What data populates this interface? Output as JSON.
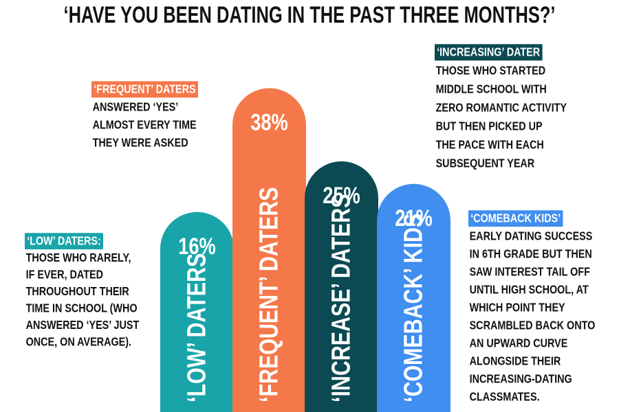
{
  "chart_data": {
    "type": "bar",
    "title": "‘HAVE YOU BEEN DATING IN THE PAST THREE MONTHS?’",
    "categories": [
      "‘LOW’ DATERS",
      "‘FREQUENT’ DATERS",
      "‘INCREASE’ DATERS",
      "‘COMEBACK’ KIDS"
    ],
    "values": [
      16,
      38,
      25,
      21
    ],
    "value_labels": [
      "16%",
      "38%",
      "25%",
      "21%"
    ],
    "colors": [
      "#19a4a9",
      "#f5784a",
      "#0b4a52",
      "#3f8ef0"
    ],
    "annotations": [
      {
        "title": "‘LOW’ DATERS:",
        "color": "#19a4a9",
        "lines": [
          "THOSE WHO RARELY,",
          "IF EVER, DATED",
          "THROUGHOUT THEIR",
          "TIME IN SCHOOL (WHO",
          "ANSWERED ‘YES’ JUST",
          "ONCE, ON AVERAGE)."
        ]
      },
      {
        "title": "‘FREQUENT’ DATERS",
        "color": "#f5784a",
        "lines": [
          "ANSWERED ‘YES’",
          "ALMOST EVERY TIME",
          "THEY WERE ASKED"
        ]
      },
      {
        "title": "‘INCREASING’ DATER",
        "color": "#0b4a52",
        "lines": [
          "THOSE WHO STARTED",
          "MIDDLE SCHOOL WITH",
          "ZERO ROMANTIC ACTIVITY",
          "BUT THEN PICKED UP",
          "THE PACE WITH EACH",
          "SUBSEQUENT YEAR"
        ]
      },
      {
        "title": "‘COMEBACK KIDS’",
        "color": "#3f8ef0",
        "lines": [
          "EARLY DATING SUCCESS",
          "IN 6TH GRADE BUT THEN",
          "SAW INTEREST TAIL OFF",
          "UNTIL HIGH SCHOOL, AT",
          "WHICH POINT THEY",
          "SCRAMBLED BACK ONTO",
          "AN UPWARD CURVE",
          "ALONGSIDE THEIR",
          "INCREASING-DATING",
          "CLASSMATES."
        ]
      }
    ]
  }
}
